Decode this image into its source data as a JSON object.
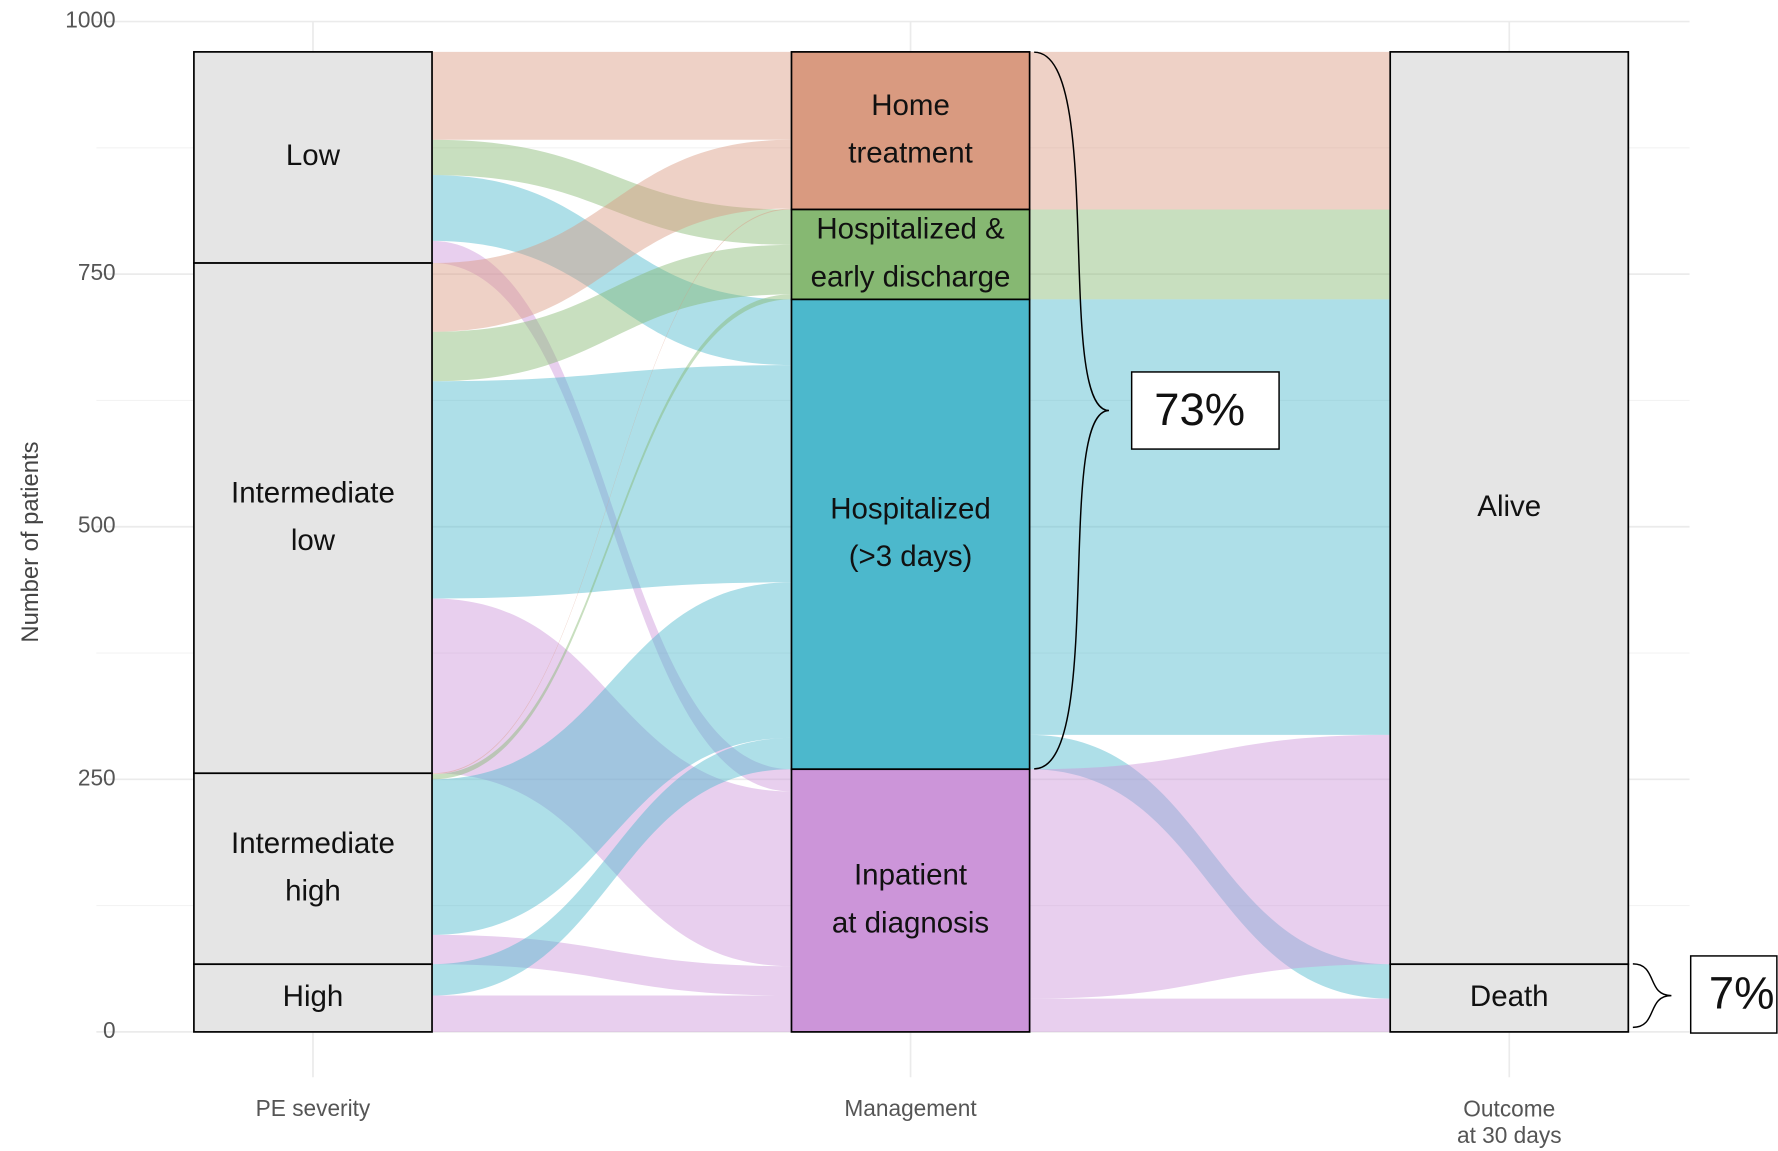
{
  "chart_data": {
    "type": "alluvial",
    "ylabel": "Number of patients",
    "ylim": [
      0,
      1000
    ],
    "yticks": [
      0,
      250,
      500,
      750,
      1000
    ],
    "grid": true,
    "axes": [
      "PE severity",
      "Management",
      "Outcome\nat 30 days"
    ],
    "strata": [
      [
        {
          "name": "Low",
          "value": 209,
          "color": "#e5e5e5"
        },
        {
          "name": "Intermediate\nlow",
          "value": 505,
          "color": "#e5e5e5"
        },
        {
          "name": "Intermediate\nhigh",
          "value": 189,
          "color": "#e5e5e5"
        },
        {
          "name": "High",
          "value": 67,
          "color": "#e5e5e5"
        }
      ],
      [
        {
          "name": "Home\ntreatment",
          "value": 156,
          "color": "#d99a80"
        },
        {
          "name": "Hospitalized &\nearly discharge",
          "value": 89,
          "color": "#86b872"
        },
        {
          "name": "Hospitalized\n(>3 days)",
          "value": 465,
          "color": "#4cb8cc"
        },
        {
          "name": "Inpatient\nat diagnosis",
          "value": 260,
          "color": "#cc95d9"
        }
      ],
      [
        {
          "name": "Alive",
          "value": 903,
          "color": "#e5e5e5"
        },
        {
          "name": "Death",
          "value": 67,
          "color": "#e5e5e5"
        }
      ]
    ],
    "flows": [
      [
        {
          "from": "Low",
          "to": "Home\ntreatment",
          "value": 87
        },
        {
          "from": "Low",
          "to": "Hospitalized &\nearly discharge",
          "value": 35
        },
        {
          "from": "Low",
          "to": "Hospitalized\n(>3 days)",
          "value": 65
        },
        {
          "from": "Low",
          "to": "Inpatient\nat diagnosis",
          "value": 22
        },
        {
          "from": "Intermediate\nlow",
          "to": "Home\ntreatment",
          "value": 68
        },
        {
          "from": "Intermediate\nlow",
          "to": "Hospitalized &\nearly discharge",
          "value": 49
        },
        {
          "from": "Intermediate\nlow",
          "to": "Hospitalized\n(>3 days)",
          "value": 215
        },
        {
          "from": "Intermediate\nlow",
          "to": "Inpatient\nat diagnosis",
          "value": 173
        },
        {
          "from": "Intermediate\nhigh",
          "to": "Home\ntreatment",
          "value": 1
        },
        {
          "from": "Intermediate\nhigh",
          "to": "Hospitalized &\nearly discharge",
          "value": 5
        },
        {
          "from": "Intermediate\nhigh",
          "to": "Hospitalized\n(>3 days)",
          "value": 154
        },
        {
          "from": "Intermediate\nhigh",
          "to": "Inpatient\nat diagnosis",
          "value": 29
        },
        {
          "from": "High",
          "to": "Hospitalized\n(>3 days)",
          "value": 31
        },
        {
          "from": "High",
          "to": "Inpatient\nat diagnosis",
          "value": 36
        }
      ],
      [
        {
          "from": "Home\ntreatment",
          "to": "Alive",
          "value": 156
        },
        {
          "from": "Hospitalized &\nearly discharge",
          "to": "Alive",
          "value": 89
        },
        {
          "from": "Hospitalized\n(>3 days)",
          "to": "Alive",
          "value": 431
        },
        {
          "from": "Hospitalized\n(>3 days)",
          "to": "Death",
          "value": 34
        },
        {
          "from": "Inpatient\nat diagnosis",
          "to": "Alive",
          "value": 227
        },
        {
          "from": "Inpatient\nat diagnosis",
          "to": "Death",
          "value": 33
        }
      ]
    ],
    "annotations": [
      "73%",
      "7%"
    ]
  }
}
